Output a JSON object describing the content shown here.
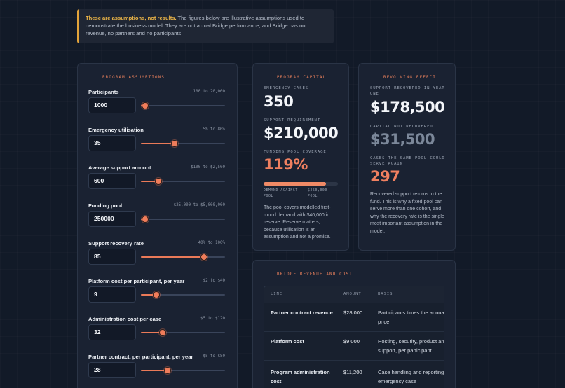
{
  "notice": {
    "highlight": "These are assumptions, not results.",
    "text": " The figures below are illustrative assumptions used to demonstrate the business model. They are not actual Bridge performance, and Bridge has no revenue, no partners and no participants."
  },
  "assumptions": {
    "heading": "PROGRAM ASSUMPTIONS",
    "fields": [
      {
        "label": "Participants",
        "range": "100 to 20,000",
        "value": "1000",
        "fraction": 0.05
      },
      {
        "label": "Emergency utilisation",
        "range": "5% to 80%",
        "value": "35",
        "fraction": 0.4
      },
      {
        "label": "Average support amount",
        "range": "$100 to $2,500",
        "value": "600",
        "fraction": 0.21
      },
      {
        "label": "Funding pool",
        "range": "$25,000 to $5,000,000",
        "value": "250000",
        "fraction": 0.05
      },
      {
        "label": "Support recovery rate",
        "range": "40% to 100%",
        "value": "85",
        "fraction": 0.75
      },
      {
        "label": "Platform cost per participant, per year",
        "range": "$2 to $40",
        "value": "9",
        "fraction": 0.18
      },
      {
        "label": "Administration cost per case",
        "range": "$5 to $120",
        "value": "32",
        "fraction": 0.26
      },
      {
        "label": "Partner contract, per participant, per year",
        "range": "$5 to $80",
        "value": "28",
        "fraction": 0.32
      }
    ]
  },
  "capital": {
    "heading": "PROGRAM CAPITAL",
    "cases_label": "EMERGENCY CASES",
    "cases_value": "350",
    "support_label": "SUPPORT REQUIREMENT",
    "support_value": "$210,000",
    "coverage_label": "FUNDING POOL COVERAGE",
    "coverage_value": "119%",
    "coverage_fraction": 0.84,
    "bar_left": "DEMAND AGAINST POOL",
    "bar_right": "$250,000 POOL",
    "description": "The pool covers modelled first-round demand with $40,000 in reserve. Reserve matters, because utilisation is an assumption and not a promise."
  },
  "revolving": {
    "heading": "REVOLVING EFFECT",
    "recovered_label": "SUPPORT RECOVERED IN YEAR ONE",
    "recovered_value": "$178,500",
    "not_recovered_label": "CAPITAL NOT RECOVERED",
    "not_recovered_value": "$31,500",
    "cases_again_label": "CASES THE SAME POOL COULD SERVE AGAIN",
    "cases_again_value": "297",
    "description": "Recovered support returns to the fund. This is why a fixed pool can serve more than one cohort, and why the recovery rate is the single most important assumption in the model."
  },
  "revenue": {
    "heading": "BRIDGE REVENUE AND COST",
    "columns": [
      "LINE",
      "AMOUNT",
      "BASIS"
    ],
    "rows": [
      {
        "line": "Partner contract revenue",
        "amount": "$28,000",
        "basis": "Participants times the annual price"
      },
      {
        "line": "Platform cost",
        "amount": "$9,000",
        "basis": "Hosting, security, product and support, per participant"
      },
      {
        "line": "Program administration cost",
        "amount": "$11,200",
        "basis": "Case handling and reporting per emergency case"
      }
    ]
  },
  "colors": {
    "accent": "#ea7a58",
    "notice": "#f0b848",
    "background": "#121a28",
    "muted_value": "#7b8799"
  }
}
